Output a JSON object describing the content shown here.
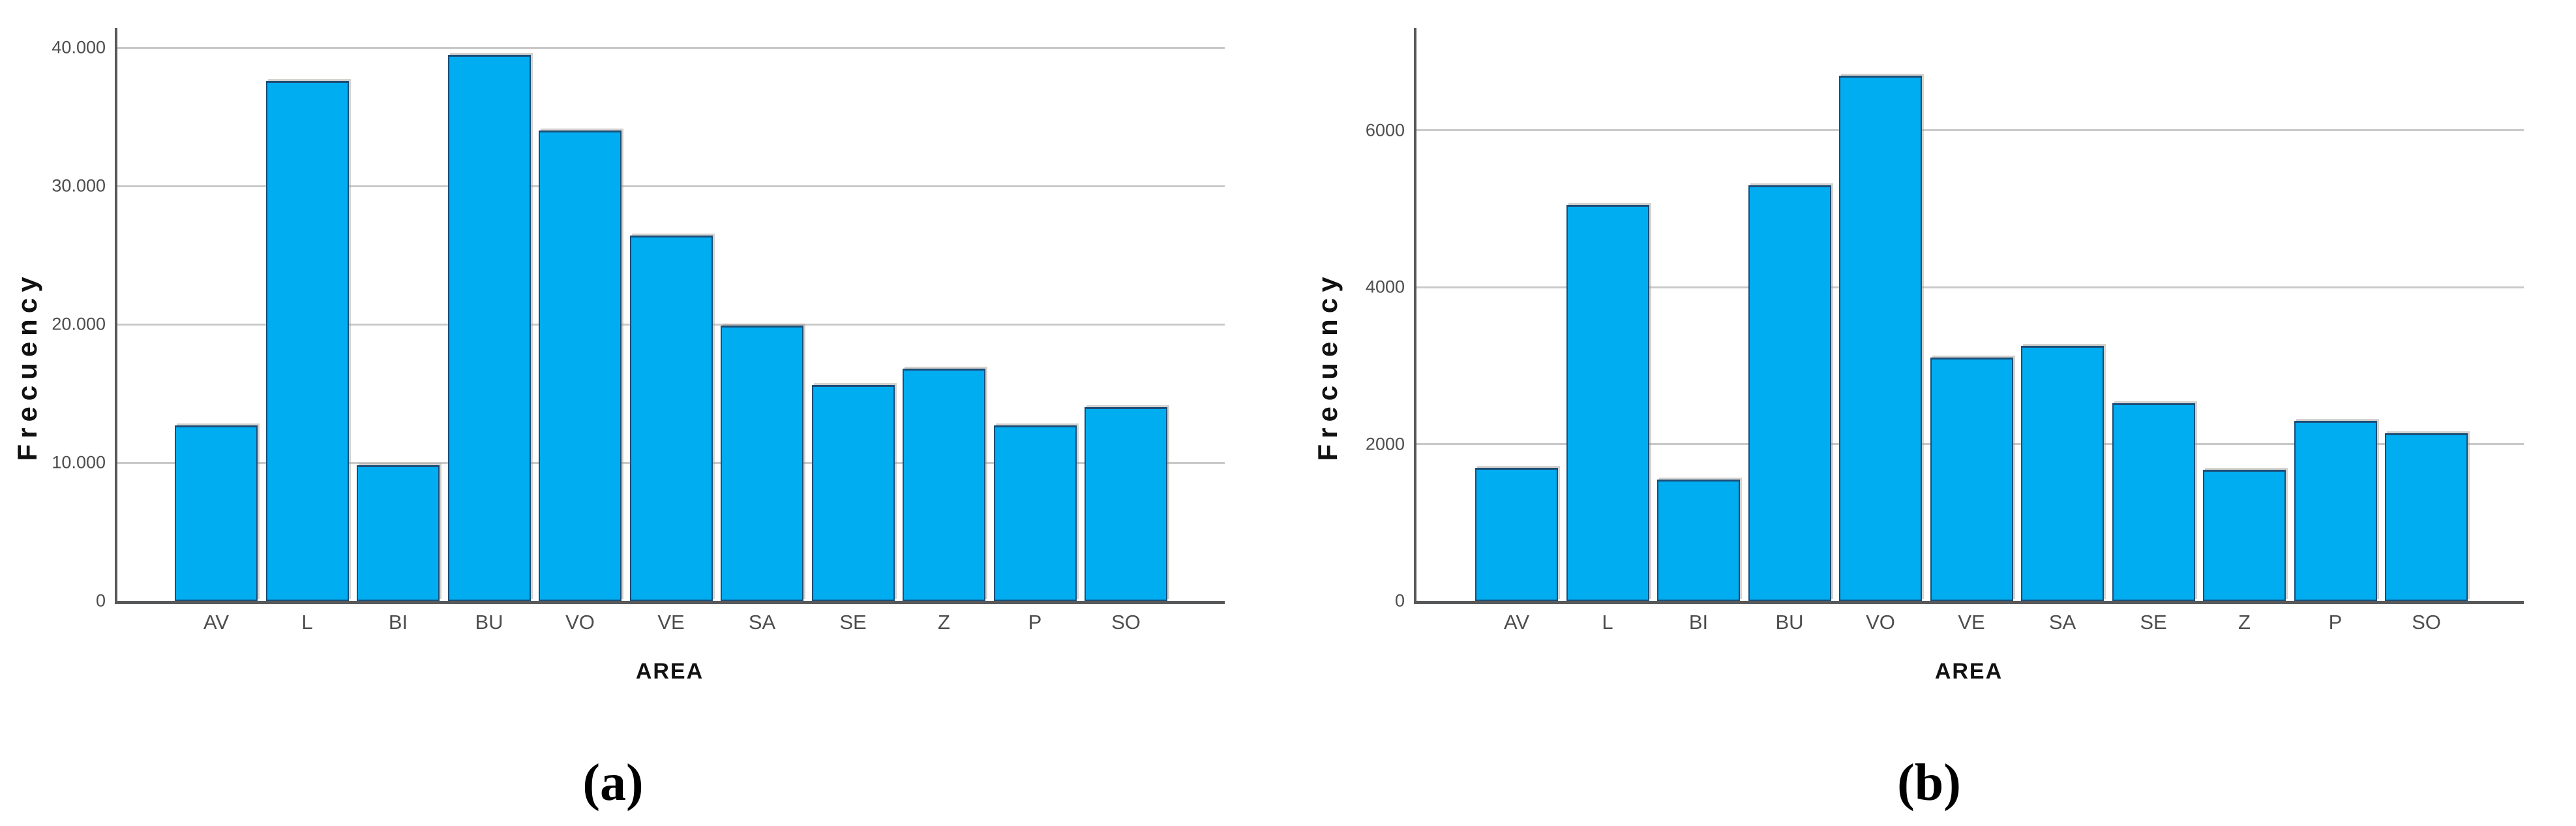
{
  "figure": {
    "captions": {
      "a": "(a)",
      "b": "(b)"
    },
    "colors": {
      "background": "#FFFFFF",
      "bar_fill": "#00ADF0",
      "bar_border": "#1B4E79",
      "gridline": "#C9C9C9",
      "axis_line": "#58595B",
      "tick_text": "#4D4D4D",
      "title_text": "#111111"
    }
  },
  "chart_data": [
    {
      "id": "a",
      "type": "bar",
      "title": "",
      "xlabel": "AREA",
      "ylabel": "Frecuency",
      "categories": [
        "AV",
        "L",
        "BI",
        "BU",
        "VO",
        "VE",
        "SA",
        "SE",
        "Z",
        "P",
        "SO"
      ],
      "values": [
        12700,
        37600,
        9800,
        39500,
        34000,
        26400,
        19900,
        15600,
        16800,
        12700,
        14000
      ],
      "ylim": [
        0,
        41400
      ],
      "yticks": [
        {
          "value": 0,
          "label": "0"
        },
        {
          "value": 10000,
          "label": "10.000"
        },
        {
          "value": 20000,
          "label": "20.000"
        },
        {
          "value": 30000,
          "label": "30.000"
        },
        {
          "value": 40000,
          "label": "40.000"
        }
      ],
      "grid": true,
      "legend": null
    },
    {
      "id": "b",
      "type": "bar",
      "title": "",
      "xlabel": "AREA",
      "ylabel": "Frecuency",
      "categories": [
        "AV",
        "L",
        "BI",
        "BU",
        "VO",
        "VE",
        "SA",
        "SE",
        "Z",
        "P",
        "SO"
      ],
      "values": [
        1700,
        5050,
        1550,
        5300,
        6700,
        3100,
        3250,
        2520,
        1670,
        2300,
        2140
      ],
      "ylim": [
        0,
        7300
      ],
      "yticks": [
        {
          "value": 0,
          "label": "0"
        },
        {
          "value": 2000,
          "label": "2000"
        },
        {
          "value": 4000,
          "label": "4000"
        },
        {
          "value": 6000,
          "label": "6000"
        }
      ],
      "grid": true,
      "legend": null
    }
  ]
}
